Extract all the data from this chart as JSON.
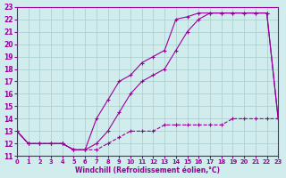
{
  "xlabel": "Windchill (Refroidissement éolien,°C)",
  "xlim": [
    0,
    23
  ],
  "ylim": [
    11,
    23
  ],
  "xticks": [
    0,
    1,
    2,
    3,
    4,
    5,
    6,
    7,
    8,
    9,
    10,
    11,
    12,
    13,
    14,
    15,
    16,
    17,
    18,
    19,
    20,
    21,
    22,
    23
  ],
  "yticks": [
    11,
    12,
    13,
    14,
    15,
    16,
    17,
    18,
    19,
    20,
    21,
    22,
    23
  ],
  "bg_color": "#d0ecec",
  "line_color": "#990099",
  "grid_color": "#a8cccc",
  "line1_x": [
    0,
    1,
    2,
    3,
    4,
    5,
    6,
    7,
    8,
    9,
    10,
    11,
    12,
    13,
    14,
    15,
    16,
    17,
    18,
    19,
    20,
    21,
    22,
    23
  ],
  "line1_y": [
    13,
    12,
    12,
    12,
    12,
    11.5,
    11.5,
    14,
    15.5,
    17,
    17.5,
    18.5,
    19,
    19.5,
    22,
    22.2,
    22.5,
    22.5,
    22.5,
    22.5,
    22.5,
    22.5,
    22.5,
    14
  ],
  "line2_x": [
    0,
    1,
    2,
    3,
    4,
    5,
    6,
    7,
    8,
    9,
    10,
    11,
    12,
    13,
    14,
    15,
    16,
    17,
    18,
    19,
    20,
    21,
    22,
    23
  ],
  "line2_y": [
    13,
    12,
    12,
    12,
    12,
    11.5,
    11.5,
    12,
    13,
    14.5,
    16,
    17,
    17.5,
    18,
    19.5,
    21,
    22,
    22.5,
    22.5,
    22.5,
    22.5,
    22.5,
    22.5,
    14
  ],
  "line3_x": [
    0,
    1,
    2,
    3,
    4,
    5,
    6,
    7,
    8,
    9,
    10,
    11,
    12,
    13,
    14,
    15,
    16,
    17,
    18,
    19,
    20,
    21,
    22,
    23
  ],
  "line3_y": [
    13,
    12,
    12,
    12,
    12,
    11.5,
    11.5,
    11.5,
    12,
    12.5,
    13,
    13,
    13,
    13.5,
    13.5,
    13.5,
    13.5,
    13.5,
    13.5,
    14,
    14,
    14,
    14,
    14
  ]
}
